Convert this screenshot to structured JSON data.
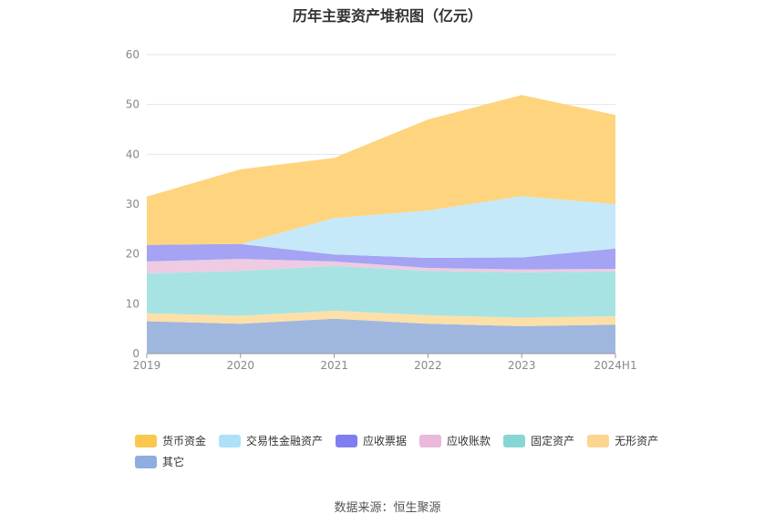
{
  "chart_data": {
    "type": "area",
    "stacked": true,
    "title": "历年主要资产堆积图（亿元）",
    "categories": [
      "2019",
      "2020",
      "2021",
      "2022",
      "2023",
      "2024H1"
    ],
    "ylim": [
      0,
      60
    ],
    "yticks": [
      0,
      10,
      20,
      30,
      40,
      50,
      60
    ],
    "grid": true,
    "legend_position": "bottom",
    "series": [
      {
        "name": "其它",
        "color": "#9fb7df",
        "legend_color": "#8daede",
        "values": [
          6.5,
          6.0,
          7.0,
          6.0,
          5.5,
          5.8
        ]
      },
      {
        "name": "无形资产",
        "color": "#fde0a8",
        "legend_color": "#fcd591",
        "values": [
          1.6,
          1.6,
          1.6,
          1.7,
          1.7,
          1.7
        ]
      },
      {
        "name": "固定资产",
        "color": "#a8e3e3",
        "legend_color": "#86d6d6",
        "values": [
          8.0,
          9.0,
          9.0,
          8.9,
          9.1,
          9.0
        ]
      },
      {
        "name": "应收账款",
        "color": "#eecbe2",
        "legend_color": "#e8b9d8",
        "values": [
          2.4,
          2.4,
          0.9,
          0.6,
          0.6,
          0.5
        ]
      },
      {
        "name": "应收票据",
        "color": "#a4a3f4",
        "legend_color": "#7f7ef0",
        "values": [
          3.3,
          3.0,
          1.4,
          2.0,
          2.4,
          4.1
        ]
      },
      {
        "name": "交易性金融资产",
        "color": "#c5e9f9",
        "legend_color": "#aee0f8",
        "values": [
          0.0,
          0.0,
          7.3,
          9.5,
          12.3,
          8.9
        ]
      },
      {
        "name": "货币资金",
        "color": "#fed57e",
        "legend_color": "#fbc84d",
        "values": [
          9.7,
          15.0,
          12.1,
          18.3,
          20.3,
          17.9
        ]
      }
    ]
  },
  "legend_order": [
    "货币资金",
    "交易性金融资产",
    "应收票据",
    "应收账款",
    "固定资产",
    "无形资产",
    "其它"
  ],
  "source": "数据来源：恒生聚源"
}
